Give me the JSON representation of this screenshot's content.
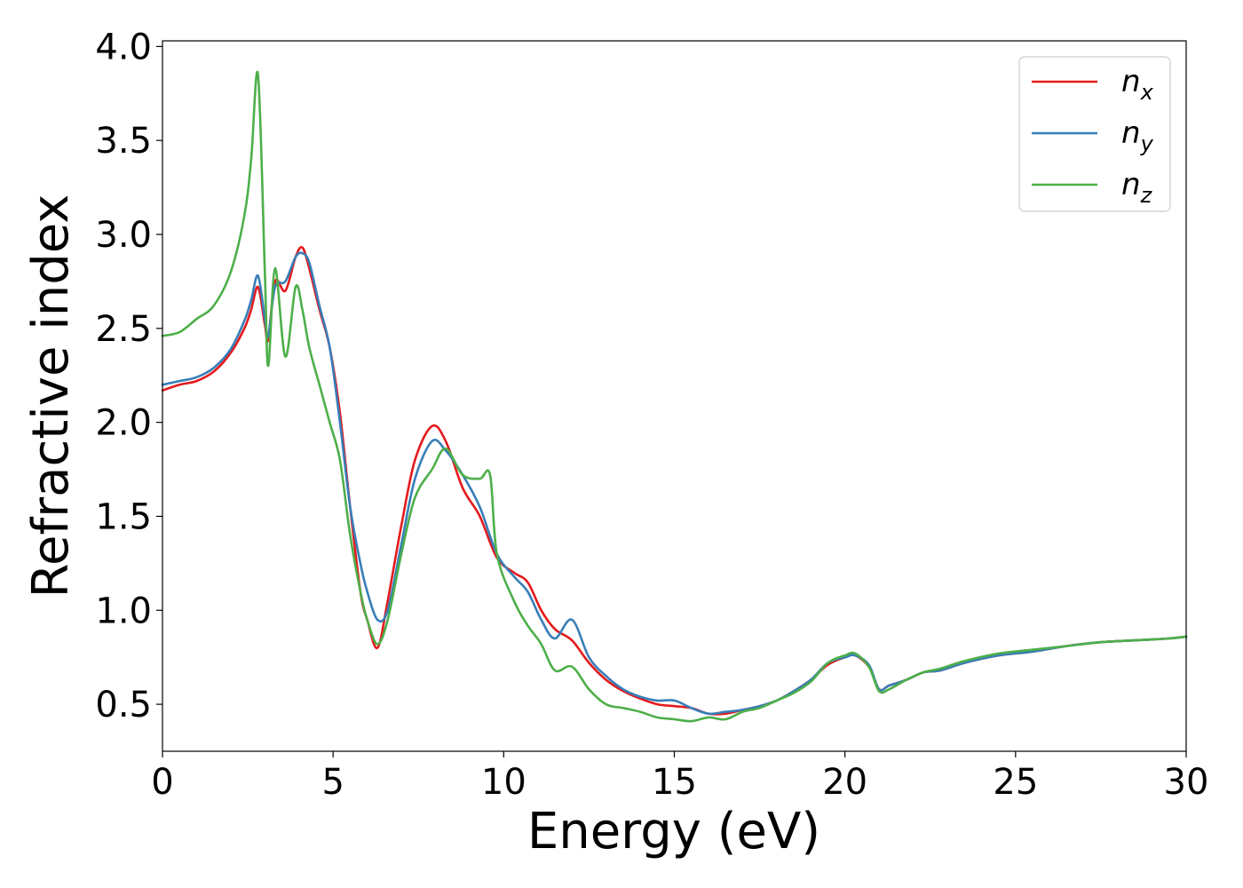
{
  "chart_data": {
    "type": "line",
    "title": "",
    "xlabel": "Energy (eV)",
    "ylabel": "Refractive index",
    "xlim": [
      0,
      30
    ],
    "ylim": [
      0.25,
      4.03
    ],
    "xticks": [
      0,
      5,
      10,
      15,
      20,
      25,
      30
    ],
    "yticks": [
      0.5,
      1.0,
      1.5,
      2.0,
      2.5,
      3.0,
      3.5,
      4.0
    ],
    "xtick_labels": [
      "0",
      "5",
      "10",
      "15",
      "20",
      "25",
      "30"
    ],
    "ytick_labels": [
      "0.5",
      "1.0",
      "1.5",
      "2.0",
      "2.5",
      "3.0",
      "3.5",
      "4.0"
    ],
    "grid": false,
    "legend_position": "top-right",
    "series": [
      {
        "name": "n_x",
        "label_base": "n",
        "label_sub": "x",
        "color": "#e41a1c",
        "x": [
          0,
          0.5,
          1.0,
          1.5,
          2.0,
          2.4,
          2.6,
          2.8,
          3.0,
          3.1,
          3.3,
          3.6,
          3.9,
          4.1,
          4.3,
          4.6,
          4.9,
          5.2,
          5.5,
          5.8,
          6.0,
          6.3,
          6.6,
          7.0,
          7.4,
          7.9,
          8.3,
          8.8,
          9.3,
          9.8,
          10.3,
          10.7,
          11.1,
          11.5,
          12.0,
          12.5,
          13.0,
          13.5,
          14.0,
          14.5,
          15.0,
          15.5,
          16.0,
          16.5,
          17.0,
          17.5,
          18.0,
          18.5,
          19.0,
          19.5,
          20.0,
          20.3,
          20.7,
          21.0,
          21.3,
          21.8,
          22.3,
          22.8,
          23.5,
          24.5,
          25.5,
          26.5,
          27.5,
          28.5,
          29.5,
          30.0
        ],
        "y": [
          2.17,
          2.2,
          2.22,
          2.27,
          2.37,
          2.5,
          2.6,
          2.72,
          2.52,
          2.44,
          2.75,
          2.7,
          2.88,
          2.93,
          2.82,
          2.6,
          2.4,
          2.05,
          1.55,
          1.1,
          0.95,
          0.8,
          1.05,
          1.45,
          1.8,
          1.98,
          1.9,
          1.65,
          1.5,
          1.28,
          1.2,
          1.15,
          1.0,
          0.9,
          0.84,
          0.72,
          0.63,
          0.57,
          0.53,
          0.5,
          0.49,
          0.48,
          0.45,
          0.45,
          0.47,
          0.49,
          0.52,
          0.57,
          0.63,
          0.71,
          0.75,
          0.76,
          0.7,
          0.58,
          0.6,
          0.63,
          0.67,
          0.68,
          0.72,
          0.76,
          0.78,
          0.81,
          0.83,
          0.84,
          0.85,
          0.86
        ]
      },
      {
        "name": "n_y",
        "label_base": "n",
        "label_sub": "y",
        "color": "#377eb8",
        "x": [
          0,
          0.5,
          1.0,
          1.5,
          2.0,
          2.4,
          2.6,
          2.8,
          3.0,
          3.1,
          3.3,
          3.6,
          3.9,
          4.1,
          4.3,
          4.6,
          4.9,
          5.2,
          5.5,
          5.8,
          6.0,
          6.3,
          6.6,
          7.0,
          7.4,
          7.9,
          8.3,
          8.8,
          9.3,
          9.8,
          10.3,
          10.7,
          11.1,
          11.5,
          12.0,
          12.5,
          13.0,
          13.5,
          14.0,
          14.5,
          15.0,
          15.5,
          16.0,
          16.5,
          17.0,
          17.5,
          18.0,
          18.5,
          19.0,
          19.5,
          20.0,
          20.3,
          20.7,
          21.0,
          21.3,
          21.8,
          22.3,
          22.8,
          23.5,
          24.5,
          25.5,
          26.5,
          27.5,
          28.5,
          29.5,
          30.0
        ],
        "y": [
          2.2,
          2.22,
          2.24,
          2.29,
          2.39,
          2.54,
          2.65,
          2.78,
          2.55,
          2.46,
          2.72,
          2.75,
          2.88,
          2.9,
          2.85,
          2.62,
          2.4,
          2.0,
          1.55,
          1.25,
          1.1,
          0.95,
          1.0,
          1.35,
          1.7,
          1.9,
          1.85,
          1.72,
          1.55,
          1.3,
          1.18,
          1.1,
          0.95,
          0.85,
          0.95,
          0.75,
          0.65,
          0.58,
          0.54,
          0.52,
          0.52,
          0.48,
          0.45,
          0.46,
          0.47,
          0.49,
          0.52,
          0.57,
          0.63,
          0.72,
          0.75,
          0.76,
          0.71,
          0.58,
          0.6,
          0.63,
          0.67,
          0.68,
          0.72,
          0.76,
          0.78,
          0.81,
          0.83,
          0.84,
          0.85,
          0.86
        ]
      },
      {
        "name": "n_z",
        "label_base": "n",
        "label_sub": "z",
        "color": "#4daf4a",
        "x": [
          0,
          0.5,
          1.0,
          1.5,
          2.0,
          2.4,
          2.6,
          2.8,
          3.0,
          3.1,
          3.3,
          3.6,
          3.9,
          4.1,
          4.3,
          4.6,
          4.9,
          5.2,
          5.5,
          5.8,
          6.0,
          6.3,
          6.6,
          7.0,
          7.4,
          7.9,
          8.3,
          8.8,
          9.3,
          9.6,
          9.8,
          10.3,
          10.7,
          11.1,
          11.5,
          12.0,
          12.5,
          13.0,
          13.5,
          14.0,
          14.5,
          15.0,
          15.5,
          16.0,
          16.5,
          17.0,
          17.5,
          18.0,
          18.5,
          19.0,
          19.5,
          20.0,
          20.3,
          20.7,
          21.0,
          21.3,
          21.8,
          22.3,
          22.8,
          23.5,
          24.5,
          25.5,
          26.5,
          27.5,
          28.5,
          29.5,
          30.0
        ],
        "y": [
          2.46,
          2.48,
          2.55,
          2.62,
          2.8,
          3.1,
          3.4,
          3.85,
          2.8,
          2.3,
          2.82,
          2.35,
          2.72,
          2.6,
          2.4,
          2.2,
          2.0,
          1.8,
          1.4,
          1.1,
          0.95,
          0.82,
          0.95,
          1.3,
          1.6,
          1.75,
          1.86,
          1.72,
          1.7,
          1.72,
          1.3,
          1.05,
          0.92,
          0.82,
          0.68,
          0.7,
          0.58,
          0.5,
          0.48,
          0.46,
          0.43,
          0.42,
          0.41,
          0.43,
          0.42,
          0.46,
          0.48,
          0.52,
          0.56,
          0.62,
          0.72,
          0.76,
          0.77,
          0.7,
          0.57,
          0.58,
          0.63,
          0.67,
          0.69,
          0.73,
          0.77,
          0.79,
          0.81,
          0.83,
          0.84,
          0.85,
          0.86
        ]
      }
    ]
  }
}
